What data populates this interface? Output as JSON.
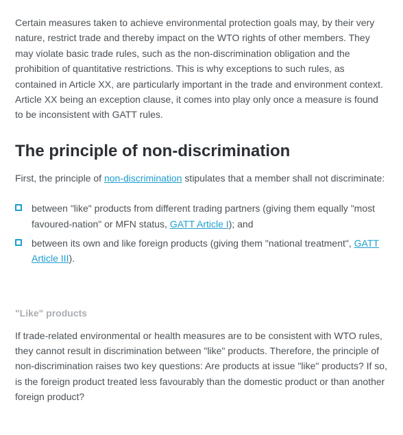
{
  "intro_paragraph": "Certain measures taken to achieve environmental protection goals may, by their very nature, restrict trade and thereby impact on the WTO rights of other members. They may violate basic trade rules, such as the non-discrimination obligation and the prohibition of quantitative restrictions. This is why exceptions to such rules, as contained in Article XX, are particularly important in the trade and environment context. Article XX being an exception clause, it comes into play only once a measure is found to be inconsistent with GATT rules.",
  "heading1": "The principle of non-discrimination",
  "para2_pre": "First, the principle of ",
  "para2_link": "non-discrimination",
  "para2_post": " stipulates that a member shall not discriminate:",
  "bullet1_pre": "between \"like\" products from different trading partners (giving them equally \"most favoured-nation\" or MFN status, ",
  "bullet1_link": "GATT Article I",
  "bullet1_post": "); and",
  "bullet2_pre": "between its own and like foreign products (giving them \"national treatment\", ",
  "bullet2_link": "GATT Article III",
  "bullet2_post": ").",
  "subheading": "\"Like\" products",
  "para3": "If trade-related environmental or health measures are to be consistent with WTO rules, they cannot result in discrimination between \"like\" products. Therefore, the principle of non-discrimination raises two key questions: Are products at issue \"like\" products? If so, is the foreign product treated less favourably than the domestic product or than another foreign product?",
  "colors": {
    "text": "#4a5055",
    "heading": "#2b2f33",
    "link": "#1e9ecf",
    "subheading": "#a9adb1",
    "background": "#ffffff"
  },
  "fonts": {
    "body_size": 14,
    "heading_size": 24,
    "subheading_size": 14
  }
}
